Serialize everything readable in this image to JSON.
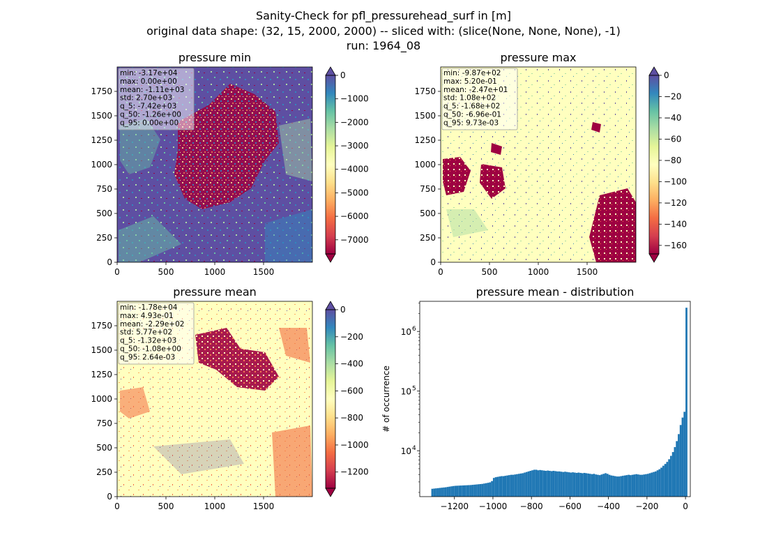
{
  "figure": {
    "title_lines": [
      "Sanity-Check for pfl_pressurehead_surf in [m]",
      "original data shape: (32, 15, 2000, 2000) -- sliced with: (slice(None, None, None), -1)",
      "run: 1964_08"
    ]
  },
  "colors": {
    "spectral_stops": [
      "#9e0142",
      "#d53e4f",
      "#f46d43",
      "#fdae61",
      "#fee08b",
      "#ffffbf",
      "#e6f598",
      "#abdda4",
      "#66c2a5",
      "#3288bd",
      "#5e4fa2"
    ],
    "hist_bar": "#1f77b4"
  },
  "chart_data": [
    {
      "type": "heatmap",
      "title": "pressure min",
      "xlim": [
        0,
        2000
      ],
      "ylim": [
        0,
        2000
      ],
      "xticks": [
        0,
        500,
        1000,
        1500
      ],
      "yticks": [
        0,
        250,
        500,
        750,
        1000,
        1250,
        1500,
        1750
      ],
      "colorbar": {
        "vmin": -7600,
        "vmax": 0,
        "ticks": [
          0,
          -1000,
          -2000,
          -3000,
          -4000,
          -5000,
          -6000,
          -7000
        ],
        "extend": "both",
        "colormap": "Spectral"
      },
      "stats": [
        "min: -3.17e+04",
        "max: 0.00e+00",
        "mean: -1.11e+03",
        "std: 2.70e+03",
        "q_5: -7.42e+03",
        "q_50: -1.26e+00",
        "q_95: 0.00e+00"
      ]
    },
    {
      "type": "heatmap",
      "title": "pressure max",
      "xlim": [
        0,
        2000
      ],
      "ylim": [
        0,
        2000
      ],
      "xticks": [
        0,
        500,
        1000,
        1500
      ],
      "yticks": [
        0,
        250,
        500,
        750,
        1000,
        1250,
        1500,
        1750
      ],
      "colorbar": {
        "vmin": -168,
        "vmax": 0,
        "ticks": [
          0,
          -20,
          -40,
          -60,
          -80,
          -100,
          -120,
          -140,
          -160
        ],
        "extend": "both",
        "colormap": "Spectral"
      },
      "stats": [
        "min: -9.87e+02",
        "max: 5.20e-01",
        "mean: -2.47e+01",
        "std: 1.08e+02",
        "q_5: -1.68e+02",
        "q_50: -6.96e-01",
        "q_95: 9.73e-03"
      ]
    },
    {
      "type": "heatmap",
      "title": "pressure mean",
      "xlim": [
        0,
        2000
      ],
      "ylim": [
        0,
        2000
      ],
      "xticks": [
        0,
        500,
        1000,
        1500
      ],
      "yticks": [
        0,
        250,
        500,
        750,
        1000,
        1250,
        1500,
        1750
      ],
      "colorbar": {
        "vmin": -1320,
        "vmax": 0,
        "ticks": [
          0,
          -200,
          -400,
          -600,
          -800,
          -1000,
          -1200
        ],
        "extend": "both",
        "colormap": "Spectral"
      },
      "stats": [
        "min: -1.78e+04",
        "max: 4.93e-01",
        "mean: -2.29e+02",
        "std: 5.77e+02",
        "q_5: -1.32e+03",
        "q_50: -1.08e+00",
        "q_95: 2.64e-03"
      ]
    },
    {
      "type": "bar",
      "title": "pressure mean - distribution",
      "xlabel": "",
      "ylabel": "# of occurrence",
      "yscale": "log",
      "xlim": [
        -1380,
        25
      ],
      "ylim": [
        1700,
        3200000
      ],
      "xticks": [
        -1200,
        -1000,
        -800,
        -600,
        -400,
        -200,
        0
      ],
      "yticks": [
        10000,
        100000,
        1000000
      ],
      "ytick_labels": [
        "10",
        "10",
        "10"
      ],
      "ytick_exponents": [
        "4",
        "5",
        "6"
      ],
      "bin_width": 10,
      "bins": [
        [
          -1320,
          2300
        ],
        [
          -1310,
          2320
        ],
        [
          -1300,
          2340
        ],
        [
          -1290,
          2360
        ],
        [
          -1280,
          2380
        ],
        [
          -1270,
          2400
        ],
        [
          -1260,
          2420
        ],
        [
          -1250,
          2440
        ],
        [
          -1240,
          2470
        ],
        [
          -1230,
          2500
        ],
        [
          -1220,
          2530
        ],
        [
          -1210,
          2560
        ],
        [
          -1200,
          2580
        ],
        [
          -1190,
          2590
        ],
        [
          -1180,
          2600
        ],
        [
          -1170,
          2610
        ],
        [
          -1160,
          2620
        ],
        [
          -1150,
          2630
        ],
        [
          -1140,
          2640
        ],
        [
          -1130,
          2650
        ],
        [
          -1120,
          2660
        ],
        [
          -1110,
          2680
        ],
        [
          -1100,
          2700
        ],
        [
          -1090,
          2720
        ],
        [
          -1080,
          2740
        ],
        [
          -1070,
          2760
        ],
        [
          -1060,
          2780
        ],
        [
          -1050,
          2820
        ],
        [
          -1040,
          2860
        ],
        [
          -1030,
          2900
        ],
        [
          -1020,
          2950
        ],
        [
          -1010,
          3100
        ],
        [
          -1000,
          3500
        ],
        [
          -990,
          3600
        ],
        [
          -980,
          3650
        ],
        [
          -970,
          3700
        ],
        [
          -960,
          3750
        ],
        [
          -950,
          3750
        ],
        [
          -940,
          3800
        ],
        [
          -930,
          3850
        ],
        [
          -920,
          3900
        ],
        [
          -910,
          3950
        ],
        [
          -900,
          3950
        ],
        [
          -890,
          4000
        ],
        [
          -880,
          4050
        ],
        [
          -870,
          4100
        ],
        [
          -860,
          4150
        ],
        [
          -850,
          4200
        ],
        [
          -840,
          4300
        ],
        [
          -830,
          4400
        ],
        [
          -820,
          4500
        ],
        [
          -810,
          4600
        ],
        [
          -800,
          4700
        ],
        [
          -790,
          4800
        ],
        [
          -780,
          4800
        ],
        [
          -770,
          4700
        ],
        [
          -760,
          4750
        ],
        [
          -750,
          4700
        ],
        [
          -740,
          4650
        ],
        [
          -730,
          4600
        ],
        [
          -720,
          4650
        ],
        [
          -710,
          4600
        ],
        [
          -700,
          4550
        ],
        [
          -690,
          4600
        ],
        [
          -680,
          4550
        ],
        [
          -670,
          4500
        ],
        [
          -660,
          4500
        ],
        [
          -650,
          4450
        ],
        [
          -640,
          4400
        ],
        [
          -630,
          4450
        ],
        [
          -620,
          4400
        ],
        [
          -610,
          4350
        ],
        [
          -600,
          4300
        ],
        [
          -590,
          4350
        ],
        [
          -580,
          4300
        ],
        [
          -570,
          4250
        ],
        [
          -560,
          4300
        ],
        [
          -550,
          4250
        ],
        [
          -540,
          4200
        ],
        [
          -530,
          4250
        ],
        [
          -520,
          4200
        ],
        [
          -510,
          4150
        ],
        [
          -500,
          4100
        ],
        [
          -490,
          4050
        ],
        [
          -480,
          4100
        ],
        [
          -470,
          4000
        ],
        [
          -460,
          3950
        ],
        [
          -450,
          3900
        ],
        [
          -440,
          4000
        ],
        [
          -430,
          4100
        ],
        [
          -420,
          4200
        ],
        [
          -410,
          4100
        ],
        [
          -400,
          3950
        ],
        [
          -390,
          3850
        ],
        [
          -380,
          3800
        ],
        [
          -370,
          3750
        ],
        [
          -360,
          3700
        ],
        [
          -350,
          3700
        ],
        [
          -340,
          3750
        ],
        [
          -330,
          3800
        ],
        [
          -320,
          3850
        ],
        [
          -310,
          3900
        ],
        [
          -300,
          3950
        ],
        [
          -290,
          3900
        ],
        [
          -280,
          3950
        ],
        [
          -270,
          4000
        ],
        [
          -260,
          4050
        ],
        [
          -250,
          4000
        ],
        [
          -240,
          3950
        ],
        [
          -230,
          3950
        ],
        [
          -220,
          4000
        ],
        [
          -210,
          4050
        ],
        [
          -200,
          4100
        ],
        [
          -190,
          4200
        ],
        [
          -180,
          4300
        ],
        [
          -170,
          4400
        ],
        [
          -160,
          4500
        ],
        [
          -150,
          4700
        ],
        [
          -140,
          4900
        ],
        [
          -130,
          5200
        ],
        [
          -120,
          5600
        ],
        [
          -110,
          6000
        ],
        [
          -100,
          6500
        ],
        [
          -90,
          7200
        ],
        [
          -80,
          8200
        ],
        [
          -70,
          9500
        ],
        [
          -60,
          11500
        ],
        [
          -50,
          14500
        ],
        [
          -40,
          19000
        ],
        [
          -30,
          27000
        ],
        [
          -20,
          36000
        ],
        [
          -10,
          45000
        ],
        [
          0,
          2500000
        ]
      ]
    }
  ]
}
